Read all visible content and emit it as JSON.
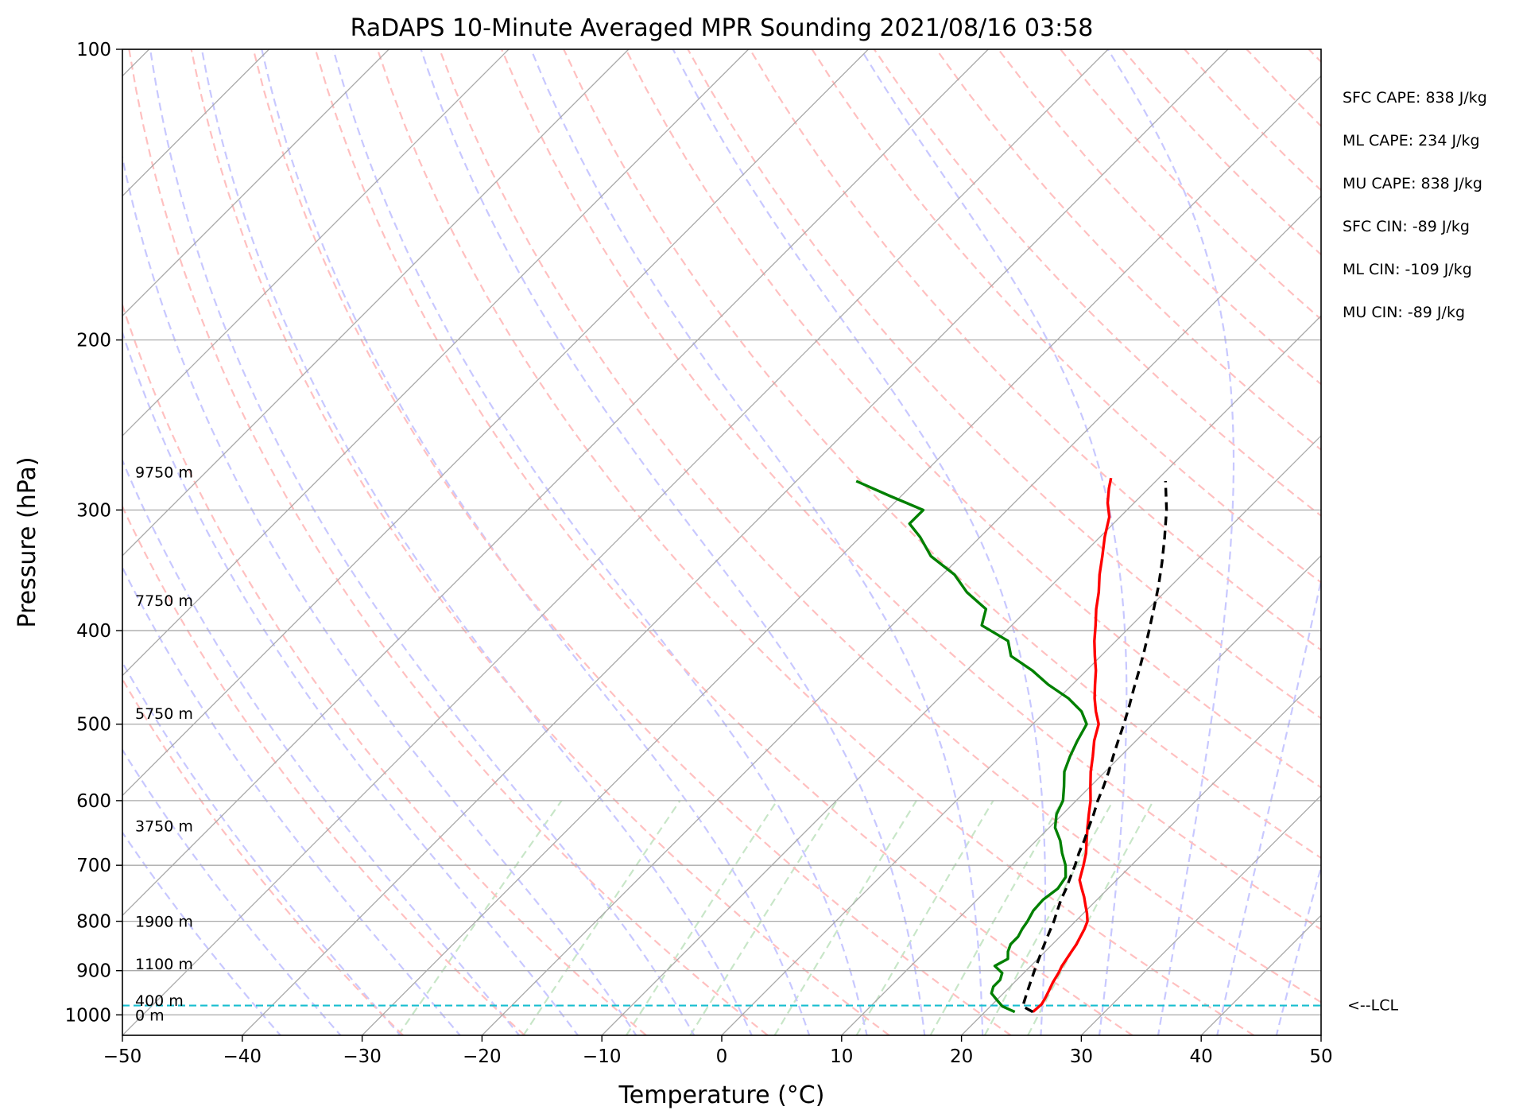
{
  "chart_data": {
    "type": "line",
    "title": "RaDAPS 10-Minute Averaged MPR Sounding 2021/08/16 03:58",
    "xlabel": "Temperature (°C)",
    "ylabel": "Pressure (hPa)",
    "xlim": [
      -50,
      50
    ],
    "ylim": [
      1050,
      100
    ],
    "y_scale": "log",
    "skew_t": true,
    "x_ticks": [
      -50,
      -40,
      -30,
      -20,
      -10,
      0,
      10,
      20,
      30,
      40,
      50
    ],
    "x_tick_labels": [
      "−50",
      "−40",
      "−30",
      "−20",
      "−10",
      "0",
      "10",
      "20",
      "30",
      "40",
      "50"
    ],
    "y_ticks": [
      100,
      200,
      300,
      400,
      500,
      600,
      700,
      800,
      900,
      1000
    ],
    "y_tick_labels": [
      "100",
      "200",
      "300",
      "400",
      "500",
      "600",
      "700",
      "800",
      "900",
      "1000"
    ],
    "grid": true,
    "colors": {
      "temperature": "#ff0000",
      "dewpoint": "#008000",
      "parcel": "#000000",
      "lcl": "#17becf",
      "isotherm": "#a9a9a9",
      "dry_adiabat": "#ffc0c0",
      "moist_adiabat": "#c8c8ff",
      "mixing_ratio": "#c8e6c8"
    },
    "series": [
      {
        "key": "temperature",
        "pressure": [
          993,
          975,
          962,
          945,
          925,
          905,
          890,
          875,
          860,
          845,
          830,
          815,
          800,
          785,
          770,
          755,
          740,
          725,
          700,
          680,
          660,
          640,
          620,
          600,
          580,
          560,
          540,
          520,
          500,
          485,
          470,
          455,
          440,
          425,
          410,
          395,
          380,
          365,
          350,
          335,
          320,
          305,
          295,
          285,
          278
        ],
        "values": [
          24.0,
          24.1,
          23.9,
          23.6,
          23.2,
          22.9,
          22.6,
          22.4,
          22.2,
          22.0,
          21.7,
          21.4,
          21.0,
          20.3,
          19.5,
          18.7,
          17.8,
          16.9,
          16.0,
          15.2,
          14.2,
          13.2,
          12.2,
          11.2,
          10.0,
          8.8,
          7.7,
          6.5,
          5.5,
          4.2,
          3.0,
          1.9,
          0.8,
          -0.5,
          -1.8,
          -3.0,
          -4.3,
          -5.5,
          -6.9,
          -8.2,
          -9.6,
          -10.9,
          -12.2,
          -13.3,
          -14.0
        ]
      },
      {
        "key": "dewpoint",
        "pressure": [
          993,
          980,
          965,
          950,
          935,
          920,
          905,
          890,
          875,
          860,
          845,
          830,
          815,
          800,
          780,
          760,
          740,
          720,
          700,
          680,
          660,
          640,
          620,
          600,
          580,
          560,
          540,
          520,
          500,
          485,
          470,
          455,
          440,
          425,
          410,
          395,
          380,
          365,
          350,
          335,
          320,
          310,
          300,
          290,
          280
        ],
        "values": [
          22.5,
          21.0,
          20.0,
          19.0,
          18.6,
          18.6,
          18.2,
          17.0,
          17.5,
          16.9,
          16.5,
          16.5,
          16.2,
          16.0,
          15.6,
          15.5,
          15.8,
          15.5,
          14.5,
          13.2,
          12.0,
          10.5,
          9.5,
          8.9,
          7.8,
          6.6,
          5.8,
          5.1,
          4.5,
          3.0,
          0.8,
          -2.0,
          -4.5,
          -7.5,
          -9.0,
          -12.5,
          -13.5,
          -16.5,
          -19.0,
          -22.5,
          -25.0,
          -27.0,
          -27.0,
          -31.0,
          -35.0
        ]
      },
      {
        "key": "parcel",
        "pressure": [
          993,
          980,
          960,
          940,
          920,
          900,
          880,
          860,
          840,
          820,
          800,
          780,
          760,
          740,
          720,
          700,
          680,
          660,
          640,
          620,
          600,
          580,
          560,
          540,
          520,
          500,
          480,
          460,
          440,
          420,
          400,
          380,
          360,
          340,
          320,
          300,
          280
        ],
        "values": [
          24.0,
          22.7,
          22.2,
          21.7,
          21.2,
          20.7,
          20.2,
          19.7,
          19.2,
          18.7,
          18.2,
          17.6,
          17.0,
          16.5,
          15.9,
          15.3,
          14.6,
          14.0,
          13.3,
          12.6,
          11.8,
          11.1,
          10.3,
          9.4,
          8.5,
          7.6,
          6.6,
          5.5,
          4.4,
          3.2,
          1.9,
          0.5,
          -1.0,
          -2.7,
          -4.6,
          -6.7,
          -9.2
        ]
      }
    ],
    "lcl": {
      "pressure": 978,
      "label": "<--LCL"
    },
    "height_labels": [
      {
        "text": "9750 m",
        "pressure": 274
      },
      {
        "text": "7750 m",
        "pressure": 372
      },
      {
        "text": "5750 m",
        "pressure": 487
      },
      {
        "text": "3750 m",
        "pressure": 637
      },
      {
        "text": "1900 m",
        "pressure": 800
      },
      {
        "text": "1100 m",
        "pressure": 885
      },
      {
        "text": "400 m",
        "pressure": 966
      },
      {
        "text": "0 m",
        "pressure": 1000
      }
    ],
    "annotations": [
      "SFC CAPE: 838 J/kg",
      "ML CAPE: 234 J/kg",
      "MU CAPE: 838 J/kg",
      "SFC CIN: -89 J/kg",
      "ML CIN: -109 J/kg",
      "MU CIN: -89 J/kg"
    ]
  }
}
